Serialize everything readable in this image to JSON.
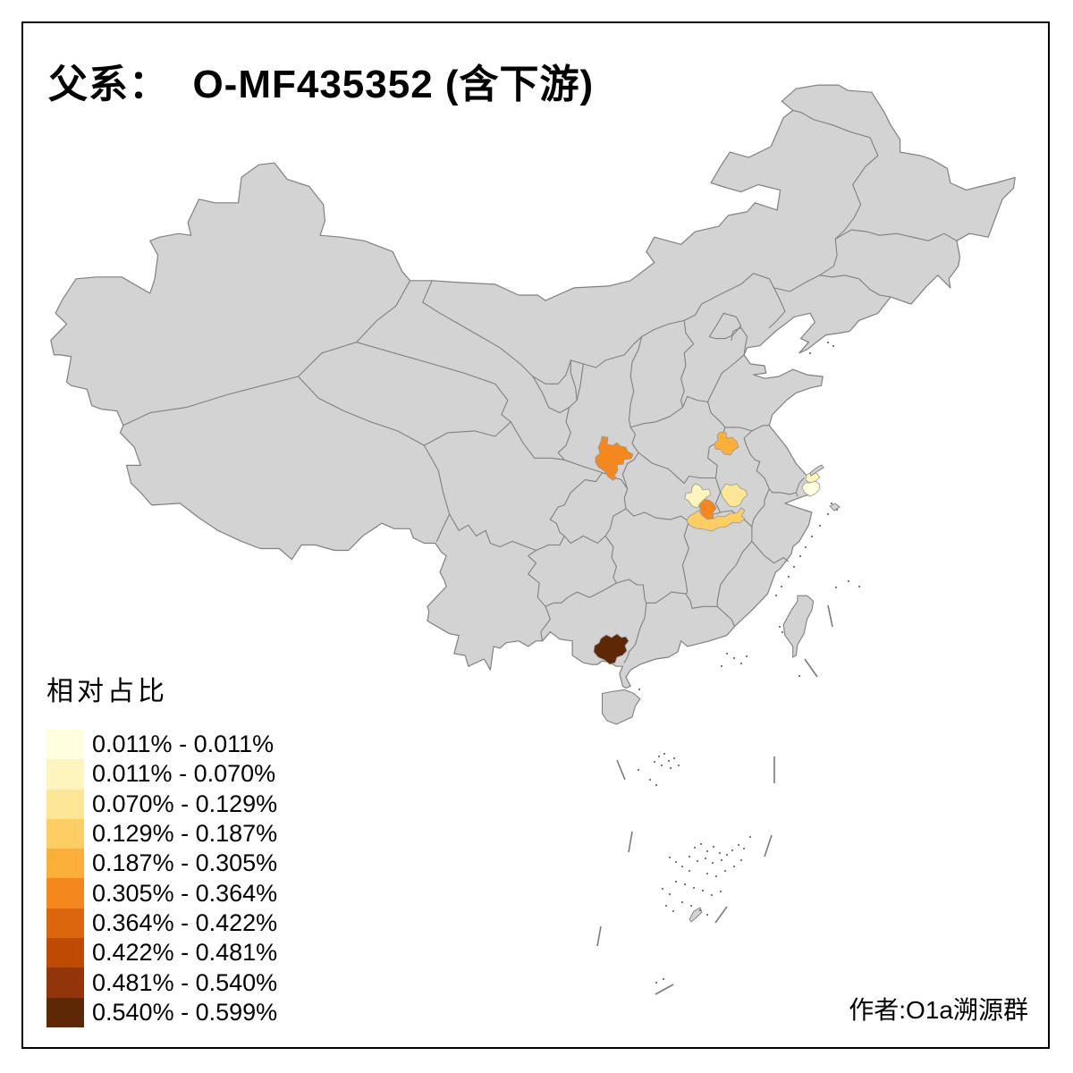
{
  "title": "父系：  O-MF435352 (含下游)",
  "attribution": "作者:O1a溯源群",
  "legend": {
    "title": "相对占比",
    "entries": [
      {
        "label": "0.011% - 0.011%",
        "color": "#FFFFDF"
      },
      {
        "label": "0.011% - 0.070%",
        "color": "#FEF4BD"
      },
      {
        "label": "0.070% - 0.129%",
        "color": "#FEE697"
      },
      {
        "label": "0.129% - 0.187%",
        "color": "#FECE65"
      },
      {
        "label": "0.187% - 0.305%",
        "color": "#FDAF3C"
      },
      {
        "label": "0.305% - 0.364%",
        "color": "#F5871F"
      },
      {
        "label": "0.364% - 0.422%",
        "color": "#DC660E"
      },
      {
        "label": "0.422% - 0.481%",
        "color": "#BF4A04"
      },
      {
        "label": "0.481% - 0.540%",
        "color": "#93350A"
      },
      {
        "label": "0.540% - 0.599%",
        "color": "#5E2807"
      }
    ]
  },
  "map": {
    "background": "#FFFFFF",
    "land_fill": "#D3D3D3",
    "border_color": "#808080",
    "frame_color": "#000000",
    "regions": [
      {
        "id": "shaanxi-south",
        "bin": 5,
        "value_range": "0.305% - 0.364%"
      },
      {
        "id": "henan-central",
        "bin": 4,
        "value_range": "0.187% - 0.305%"
      },
      {
        "id": "hubei-northwest",
        "bin": 1,
        "value_range": "0.011% - 0.070%"
      },
      {
        "id": "hubei-northeast",
        "bin": 2,
        "value_range": "0.070% - 0.129%"
      },
      {
        "id": "hubei-central",
        "bin": 5,
        "value_range": "0.305% - 0.364%"
      },
      {
        "id": "hubei-south",
        "bin": 3,
        "value_range": "0.129% - 0.187%"
      },
      {
        "id": "jiangsu-southeast",
        "bin": 1,
        "value_range": "0.011% - 0.070%"
      },
      {
        "id": "shanghai",
        "bin": 0,
        "value_range": "0.011% - 0.011%"
      },
      {
        "id": "guangxi-south",
        "bin": 9,
        "value_range": "0.540% - 0.599%"
      }
    ]
  }
}
